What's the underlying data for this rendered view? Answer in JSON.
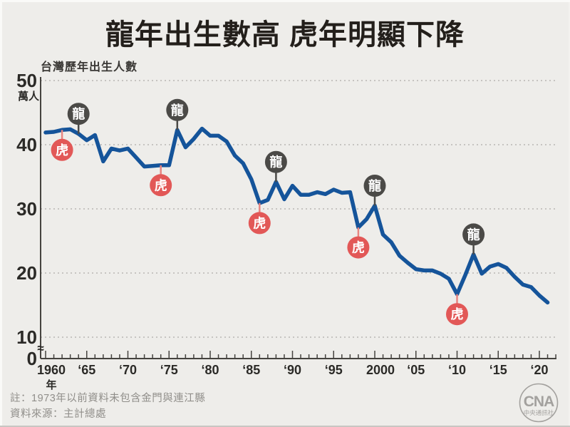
{
  "title": "龍年出生數高 虎年明顯下降",
  "subtitle": "台灣歷年出生人數",
  "notes": {
    "line1": "註：1973年以前資料未包含金門與連江縣",
    "line2": "資料來源：主計總處"
  },
  "logo": {
    "abbr": "CNA",
    "name": "中央通訊社"
  },
  "colors": {
    "background": "#eeedea",
    "title": "#231f1b",
    "line": "#15549a",
    "tiger_badge": "#e25857",
    "tiger_stem": "#e88580",
    "dragon_badge": "#4b4a47",
    "grid": "#b9b7b3",
    "axis": "#45433f",
    "tick_label": "#2b2a27",
    "note": "#908e8a",
    "logo": "#a3a19e",
    "badge_text": "#ffffff"
  },
  "chart_data": {
    "type": "line",
    "title": "台灣歷年出生人數",
    "ylabel_unit": "萬人",
    "xlabel_unit": "年",
    "ylim": [
      0,
      50
    ],
    "y_axis_break": true,
    "y_break_symbol": "≈",
    "y_zero_label": "0",
    "grid": "dotted-horizontal",
    "y_ticks": [
      10,
      20,
      30,
      40,
      50
    ],
    "x_tick_years": [
      1960,
      1965,
      1970,
      1975,
      1980,
      1985,
      1990,
      1995,
      2000,
      2005,
      2010,
      2015,
      2020
    ],
    "x_tick_labels": [
      "1960",
      "‘65",
      "‘70",
      "‘75",
      "‘80",
      "‘85",
      "‘90",
      "‘95",
      "2000",
      "‘05",
      "‘10",
      "‘15",
      "‘20"
    ],
    "x_minor_tick_every_year": true,
    "x_range_years": [
      1960,
      2022
    ],
    "series": [
      {
        "name": "台灣歷年出生人數(萬人)",
        "x": [
          1960,
          1961,
          1962,
          1963,
          1964,
          1965,
          1966,
          1967,
          1968,
          1969,
          1970,
          1971,
          1972,
          1973,
          1974,
          1975,
          1976,
          1977,
          1978,
          1979,
          1980,
          1981,
          1982,
          1983,
          1984,
          1985,
          1986,
          1987,
          1988,
          1989,
          1990,
          1991,
          1992,
          1993,
          1994,
          1995,
          1996,
          1997,
          1998,
          1999,
          2000,
          2001,
          2002,
          2003,
          2004,
          2005,
          2006,
          2007,
          2008,
          2009,
          2010,
          2011,
          2012,
          2013,
          2014,
          2015,
          2016,
          2017,
          2018,
          2019,
          2020,
          2021
        ],
        "values": [
          41.9,
          42.0,
          42.3,
          42.4,
          41.7,
          40.7,
          41.5,
          37.4,
          39.4,
          39.1,
          39.4,
          38.0,
          36.6,
          36.7,
          36.8,
          36.8,
          42.3,
          39.6,
          40.9,
          42.5,
          41.4,
          41.4,
          40.5,
          38.3,
          37.1,
          34.6,
          30.9,
          31.4,
          34.2,
          31.5,
          33.6,
          32.2,
          32.2,
          32.6,
          32.3,
          33.0,
          32.5,
          32.6,
          27.1,
          28.4,
          30.5,
          26.0,
          24.8,
          22.7,
          21.6,
          20.6,
          20.4,
          20.4,
          19.9,
          19.1,
          16.7,
          19.7,
          22.9,
          19.9,
          21.0,
          21.4,
          20.8,
          19.4,
          18.2,
          17.8,
          16.5,
          15.4
        ]
      }
    ],
    "annotations": [
      {
        "year": 1962,
        "zodiac": "tiger",
        "label": "虎",
        "side": "below"
      },
      {
        "year": 1964,
        "zodiac": "dragon",
        "label": "龍",
        "side": "above"
      },
      {
        "year": 1974,
        "zodiac": "tiger",
        "label": "虎",
        "side": "below"
      },
      {
        "year": 1976,
        "zodiac": "dragon",
        "label": "龍",
        "side": "above"
      },
      {
        "year": 1986,
        "zodiac": "tiger",
        "label": "虎",
        "side": "below"
      },
      {
        "year": 1988,
        "zodiac": "dragon",
        "label": "龍",
        "side": "above"
      },
      {
        "year": 1998,
        "zodiac": "tiger",
        "label": "虎",
        "side": "below"
      },
      {
        "year": 2000,
        "zodiac": "dragon",
        "label": "龍",
        "side": "above"
      },
      {
        "year": 2010,
        "zodiac": "tiger",
        "label": "虎",
        "side": "below"
      },
      {
        "year": 2012,
        "zodiac": "dragon",
        "label": "龍",
        "side": "above"
      }
    ]
  }
}
